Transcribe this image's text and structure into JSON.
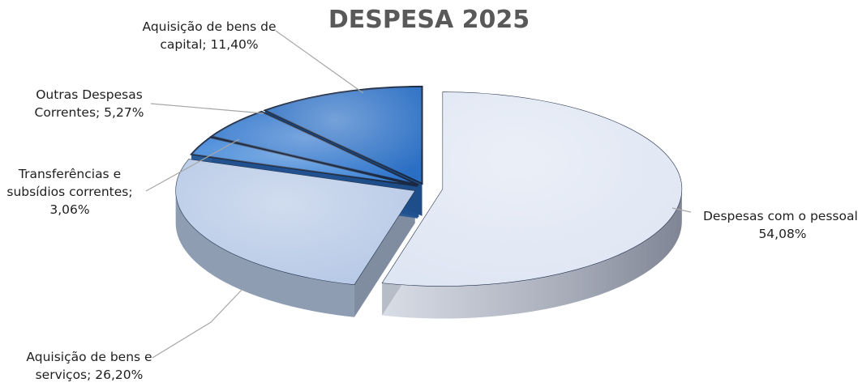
{
  "chart_data": {
    "type": "pie",
    "title": "DESPESA 2025",
    "slices": [
      {
        "name": "Despesas com o pessoal",
        "value": 54.08,
        "label": [
          "Despesas com o pessoal;",
          "54,08%"
        ],
        "color": "#dfe6f3"
      },
      {
        "name": "Aquisição de bens e serviços",
        "value": 26.2,
        "label": [
          "Aquisição de bens e",
          "serviços; 26,20%"
        ],
        "color": "#b7c9e6"
      },
      {
        "name": "Transferências e subsídios correntes",
        "value": 3.06,
        "label": [
          "Transferências e",
          "subsídios correntes;",
          "3,06%"
        ],
        "color": "#3a82d6"
      },
      {
        "name": "Outras Despesas Correntes",
        "value": 5.27,
        "label": [
          "Outras Despesas",
          "Correntes; 5,27%"
        ],
        "color": "#2f75cc"
      },
      {
        "name": "Aquisição de bens de capital",
        "value": 11.4,
        "label": [
          "Aquisição de bens de",
          "capital; 11,40%"
        ],
        "color": "#2b6fc4"
      }
    ],
    "legend": "none",
    "data_labels": "outside-with-leader-lines",
    "style": "3d-exploded"
  }
}
